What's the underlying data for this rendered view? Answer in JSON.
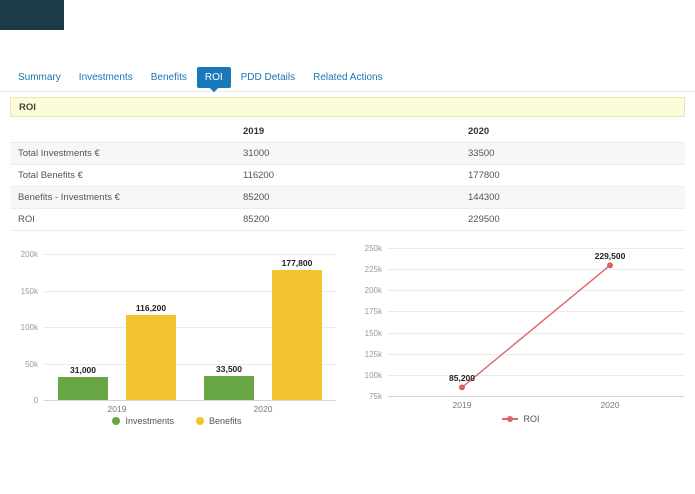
{
  "colors": {
    "logo": "#1d3b47",
    "tab_active_bg": "#1878ba",
    "tab_link": "#1a75b5",
    "section_bg": "#fdfcd8",
    "investments_green": "#67a643",
    "benefits_yellow": "#f1c232",
    "roi_red": "#e06666"
  },
  "tabs": {
    "items": [
      "Summary",
      "Investments",
      "Benefits",
      "ROI",
      "PDD Details",
      "Related Actions"
    ],
    "active": "ROI"
  },
  "section": {
    "title": "ROI"
  },
  "roi_table": {
    "columns": [
      "",
      "2019",
      "2020"
    ],
    "rows": [
      {
        "label": "Total Investments €",
        "values": [
          "31000",
          "33500"
        ]
      },
      {
        "label": "Total Benefits €",
        "values": [
          "116200",
          "177800"
        ]
      },
      {
        "label": "Benefits - Investments €",
        "values": [
          "85200",
          "144300"
        ]
      },
      {
        "label": "ROI",
        "values": [
          "85200",
          "229500"
        ]
      }
    ]
  },
  "chart_data": [
    {
      "type": "bar",
      "categories": [
        "2019",
        "2020"
      ],
      "series": [
        {
          "name": "Investments",
          "color": "#67a643",
          "values": [
            31000,
            33500
          ],
          "labels": [
            "31,000",
            "33,500"
          ]
        },
        {
          "name": "Benefits",
          "color": "#f1c232",
          "values": [
            116200,
            177800
          ],
          "labels": [
            "116,200",
            "177,800"
          ]
        }
      ],
      "ylim": [
        0,
        200000
      ],
      "ytick_step": 50000,
      "grid": true,
      "legend_position": "bottom"
    },
    {
      "type": "line",
      "categories": [
        "2019",
        "2020"
      ],
      "series": [
        {
          "name": "ROI",
          "color": "#e06666",
          "values": [
            85200,
            229500
          ],
          "labels": [
            "85,200",
            "229,500"
          ]
        }
      ],
      "ylim": [
        75000,
        250000
      ],
      "ytick_step": 25000,
      "grid": true,
      "legend_position": "bottom"
    }
  ]
}
